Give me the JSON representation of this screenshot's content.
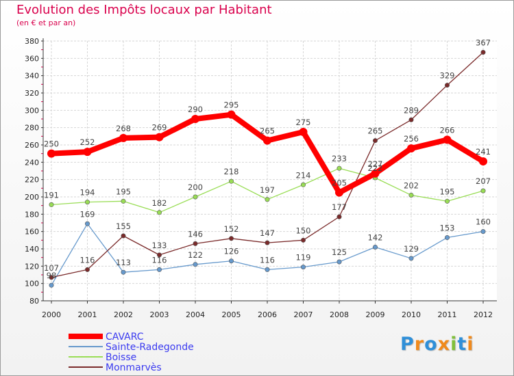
{
  "chart_data": {
    "type": "line",
    "title": "Evolution des Impôts locaux par Habitant",
    "subtitle": "(en € et par an)",
    "xlabel": "",
    "ylabel": "",
    "ylim": [
      80,
      380
    ],
    "yticks": [
      80,
      100,
      120,
      140,
      160,
      180,
      200,
      220,
      240,
      260,
      280,
      300,
      320,
      340,
      360,
      380
    ],
    "x": [
      "2000",
      "2001",
      "2002",
      "2003",
      "2004",
      "2005",
      "2006",
      "2007",
      "2008",
      "2009",
      "2010",
      "2011",
      "2012"
    ],
    "grid": true,
    "legend": "bottom-left",
    "series": [
      {
        "name": "CAVARC",
        "color": "#ff0000",
        "values": [
          250,
          252,
          268,
          269,
          290,
          295,
          265,
          275,
          205,
          227,
          256,
          266,
          241
        ]
      },
      {
        "name": "Sainte-Radegonde",
        "color": "#6699cc",
        "values": [
          98,
          169,
          113,
          116,
          122,
          126,
          116,
          119,
          125,
          142,
          129,
          153,
          160
        ]
      },
      {
        "name": "Boisse",
        "color": "#99dd55",
        "values": [
          191,
          194,
          195,
          182,
          200,
          218,
          197,
          214,
          233,
          222,
          202,
          195,
          207
        ]
      },
      {
        "name": "Monmarvès",
        "color": "#7a2a2a",
        "values": [
          107,
          116,
          155,
          133,
          146,
          152,
          147,
          150,
          177,
          265,
          289,
          329,
          367
        ]
      }
    ]
  },
  "logo": {
    "letters": [
      "P",
      "r",
      "o",
      "x",
      "i",
      "t",
      "i"
    ],
    "colors": [
      "#2f8fd8",
      "#f08a1c",
      "#2f8fd8",
      "#f08a1c",
      "#80c03a",
      "#2f8fd8",
      "#f08a1c"
    ]
  }
}
